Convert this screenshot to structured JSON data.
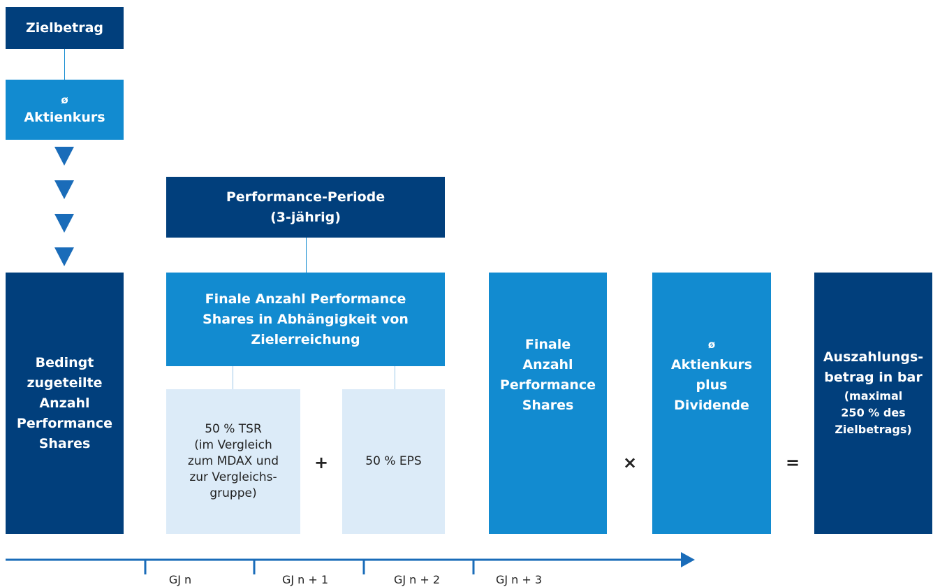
{
  "target": {
    "lines": [
      "Zielbetrag"
    ]
  },
  "price": {
    "lines": [
      "ø",
      "Aktienkurs"
    ]
  },
  "period": {
    "lines": [
      "Performance-Periode",
      "(3-jährig)"
    ]
  },
  "final_count": {
    "lines": [
      "Finale Anzahl Performance",
      "Shares in Abhängigkeit von",
      "Zielerreichung"
    ]
  },
  "tsr": {
    "lines": [
      "50 % TSR",
      "(im Vergleich",
      "zum MDAX und",
      "zur Vergleichs-",
      "gruppe)"
    ]
  },
  "plus": "+",
  "eps": {
    "lines": [
      "50 % EPS"
    ]
  },
  "conditional": {
    "lines": [
      "Bedingt",
      "zugeteilte",
      "Anzahl",
      "Performance",
      "Shares"
    ]
  },
  "final_shares": {
    "lines": [
      "Finale",
      "Anzahl",
      "Performance",
      "Shares"
    ]
  },
  "times": "×",
  "price_div": {
    "lines": [
      "ø",
      "Aktienkurs",
      "plus",
      "Dividende"
    ]
  },
  "equals": "=",
  "payout": {
    "lines": [
      "Auszahlungs-",
      "betrag in bar"
    ],
    "note": [
      "(maximal",
      "250 % des",
      "Zielbetrags)"
    ]
  },
  "timeline": {
    "labels": [
      "GJ n",
      "GJ n + 1",
      "GJ n + 2",
      "GJ n + 3"
    ]
  }
}
